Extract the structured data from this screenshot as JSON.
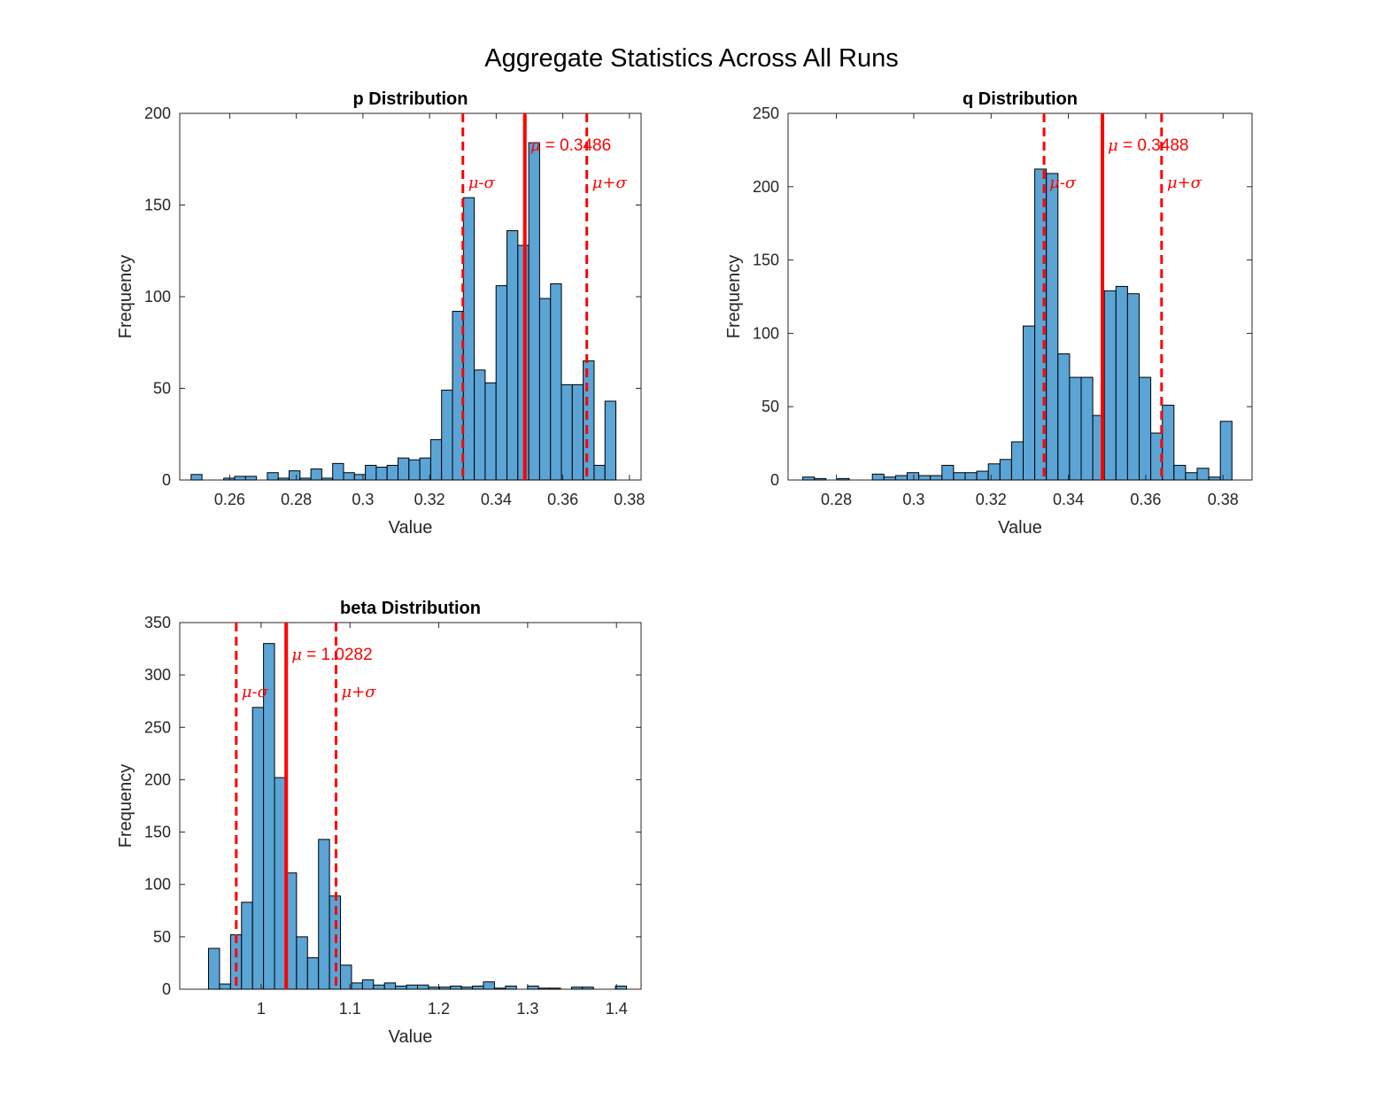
{
  "figure": {
    "title": "Aggregate Statistics Across All Runs"
  },
  "colors": {
    "bar_fill": "#5ba4d6",
    "bar_edge": "#000000",
    "mean_line": "#ff0000",
    "sigma_line": "#ff0000"
  },
  "chart_data": [
    {
      "type": "bar",
      "title": "p Distribution",
      "xlabel": "Value",
      "ylabel": "Frequency",
      "xlim": [
        0.245,
        0.3835
      ],
      "ylim": [
        0,
        200
      ],
      "xticks": [
        0.26,
        0.28,
        0.3,
        0.32,
        0.34,
        0.36,
        0.38
      ],
      "xtick_labels": [
        "0.26",
        "0.28",
        "0.3",
        "0.32",
        "0.34",
        "0.36",
        "0.38"
      ],
      "yticks": [
        0,
        50,
        100,
        150,
        200
      ],
      "ytick_labels": [
        "0",
        "50",
        "100",
        "150",
        "200"
      ],
      "bin_start": 0.2484,
      "bin_width": 0.00327,
      "values": [
        3,
        0,
        0,
        1,
        2,
        2,
        0,
        4,
        1,
        5,
        1,
        6,
        1,
        9,
        4,
        3,
        8,
        7,
        8,
        12,
        11,
        12,
        22,
        49,
        92,
        154,
        60,
        53,
        106,
        136,
        128,
        184,
        99,
        107,
        52,
        52,
        65,
        8,
        43
      ],
      "mean": 0.3486,
      "mean_label_prefix": "μ",
      "mean_label_value": " = 0.3486",
      "mu_minus_sigma": 0.33,
      "mu_plus_sigma": 0.3672,
      "minus_label": "μ-σ",
      "plus_label": "μ+σ"
    },
    {
      "type": "bar",
      "title": "q Distribution",
      "xlabel": "Value",
      "ylabel": "Frequency",
      "xlim": [
        0.2675,
        0.3875
      ],
      "ylim": [
        0,
        250
      ],
      "xticks": [
        0.28,
        0.3,
        0.32,
        0.34,
        0.36,
        0.38
      ],
      "xtick_labels": [
        "0.28",
        "0.3",
        "0.32",
        "0.34",
        "0.36",
        "0.38"
      ],
      "yticks": [
        0,
        50,
        100,
        150,
        200,
        250
      ],
      "ytick_labels": [
        "0",
        "50",
        "100",
        "150",
        "200",
        "250"
      ],
      "bin_start": 0.2713,
      "bin_width": 0.003,
      "values": [
        2,
        1,
        0,
        1,
        0,
        0,
        4,
        2,
        3,
        5,
        3,
        3,
        10,
        5,
        5,
        6,
        11,
        14,
        26,
        105,
        212,
        209,
        86,
        70,
        70,
        44,
        129,
        132,
        127,
        70,
        32,
        51,
        10,
        5,
        8,
        2,
        40
      ],
      "mean": 0.3488,
      "mean_label_prefix": "μ",
      "mean_label_value": " = 0.3488",
      "mu_minus_sigma": 0.3337,
      "mu_plus_sigma": 0.3641,
      "minus_label": "μ-σ",
      "plus_label": "μ+σ"
    },
    {
      "type": "bar",
      "title": "beta Distribution",
      "xlabel": "Value",
      "ylabel": "Frequency",
      "xlim": [
        0.9084,
        1.4277
      ],
      "ylim": [
        0,
        350
      ],
      "xticks": [
        1,
        1.1,
        1.2,
        1.3,
        1.4
      ],
      "xtick_labels": [
        "1",
        "1.1",
        "1.2",
        "1.3",
        "1.4"
      ],
      "yticks": [
        0,
        50,
        100,
        150,
        200,
        250,
        300,
        350
      ],
      "ytick_labels": [
        "0",
        "50",
        "100",
        "150",
        "200",
        "250",
        "300",
        "350"
      ],
      "bin_start": 0.9408,
      "bin_width": 0.01238,
      "values": [
        39,
        5,
        52,
        83,
        269,
        330,
        202,
        111,
        50,
        30,
        143,
        89,
        23,
        6,
        9,
        4,
        6,
        3,
        4,
        4,
        2,
        2,
        3,
        2,
        3,
        7,
        1,
        3,
        0,
        3,
        1,
        1,
        0,
        2,
        2,
        0,
        0,
        3
      ],
      "mean": 1.0282,
      "mean_label_prefix": "μ",
      "mean_label_value": " = 1.0282",
      "mu_minus_sigma": 0.972,
      "mu_plus_sigma": 1.0843,
      "minus_label": "μ-σ",
      "plus_label": "μ+σ"
    }
  ]
}
